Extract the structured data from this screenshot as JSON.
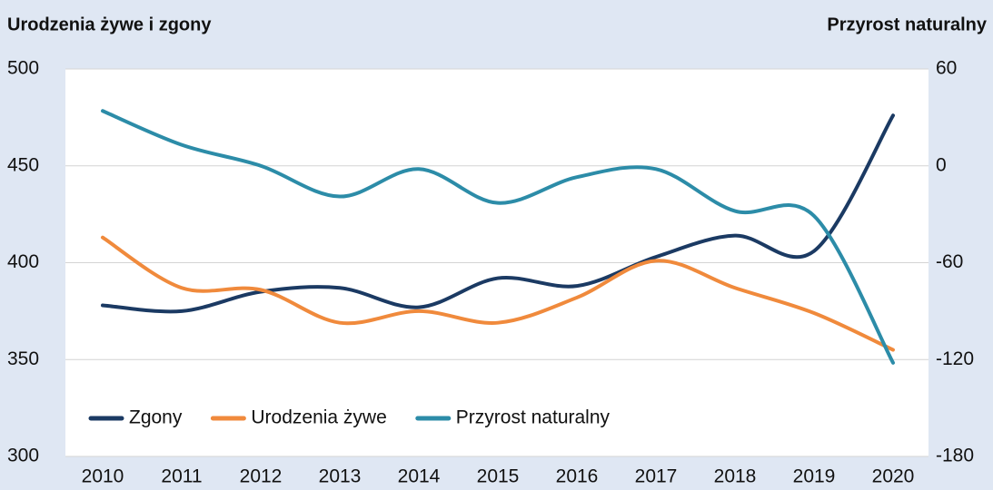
{
  "chart_data": {
    "type": "line",
    "title": "Urodzenia żywe i zgony",
    "y2_title": "Przyrost naturalny",
    "categories": [
      "2010",
      "2011",
      "2012",
      "2013",
      "2014",
      "2015",
      "2016",
      "2017",
      "2018",
      "2019",
      "2020"
    ],
    "series": [
      {
        "name": "Zgony",
        "color": "#1b3a63",
        "values": [
          378,
          375,
          385,
          387,
          377,
          392,
          388,
          403,
          414,
          406,
          476
        ]
      },
      {
        "name": "Urodzenia żywe",
        "color": "#f08a3c",
        "values": [
          413,
          387,
          386,
          369,
          375,
          369,
          382,
          401,
          387,
          374,
          355
        ]
      },
      {
        "name": "Przyrost naturalny",
        "color": "#2c8ca8",
        "axis": "y2",
        "values": [
          34,
          13,
          0,
          -19,
          -2,
          -23,
          -7,
          -2,
          -28,
          -31,
          -122
        ]
      }
    ],
    "ylim": [
      300,
      500
    ],
    "yticks": [
      300,
      350,
      400,
      450,
      500
    ],
    "y2lim": [
      -180,
      60
    ],
    "y2ticks": [
      -180,
      -120,
      -60,
      0,
      60
    ],
    "grid": true,
    "legend": "bottom-left"
  }
}
